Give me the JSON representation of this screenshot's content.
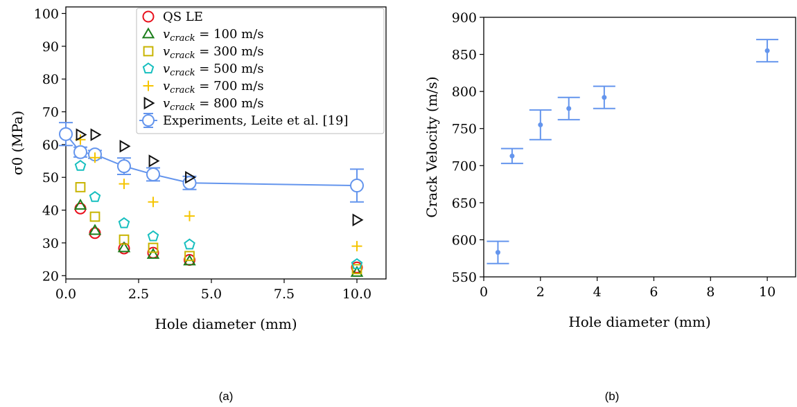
{
  "chart_data": [
    {
      "type": "scatter",
      "panel_label": "(a)",
      "xlabel": "Hole diameter (mm)",
      "ylabel": "σ0 (MPa)",
      "xlim": [
        0,
        11
      ],
      "ylim": [
        19,
        102
      ],
      "xticks": [
        "0.0",
        "2.5",
        "5.0",
        "7.5",
        "10.0"
      ],
      "xtick_values": [
        0,
        2.5,
        5,
        7.5,
        10
      ],
      "yticks": [
        "20",
        "30",
        "40",
        "50",
        "60",
        "70",
        "80",
        "90",
        "100"
      ],
      "ytick_values": [
        20,
        30,
        40,
        50,
        60,
        70,
        80,
        90,
        100
      ],
      "grid": false,
      "legend_position": "top-right",
      "x": [
        0.5,
        1,
        2,
        3,
        4.25,
        10
      ],
      "series": [
        {
          "legend_prefix": "QS LE",
          "legend_suffix": "",
          "marker": "circle",
          "color": "#e8101c",
          "values": [
            40.5,
            33,
            28.3,
            27,
            24.8,
            22.5
          ]
        },
        {
          "legend_prefix": "v",
          "legend_sub": "crack",
          "legend_suffix": " = 100 m/s",
          "marker": "triangle",
          "color": "#1a7d1a",
          "values": [
            41.5,
            33.8,
            28.5,
            26.5,
            24.5,
            21
          ]
        },
        {
          "legend_prefix": "v",
          "legend_sub": "crack",
          "legend_suffix": " = 300 m/s",
          "marker": "square",
          "color": "#c8b400",
          "values": [
            47,
            38,
            31,
            28.5,
            26,
            22
          ]
        },
        {
          "legend_prefix": "v",
          "legend_sub": "crack",
          "legend_suffix": " = 500 m/s",
          "marker": "pentagon",
          "color": "#17bfbf",
          "values": [
            53.5,
            44,
            36,
            32,
            29.5,
            23.5
          ]
        },
        {
          "legend_prefix": "v",
          "legend_sub": "crack",
          "legend_suffix": " = 700 m/s",
          "marker": "plus",
          "color": "#f5c400",
          "values": [
            61.5,
            56,
            48,
            42.5,
            38.2,
            29
          ]
        },
        {
          "legend_prefix": "v",
          "legend_sub": "crack",
          "legend_suffix": " = 800 m/s",
          "marker": "triangle-right",
          "color": "#111111",
          "values": [
            63,
            63,
            59.5,
            55,
            50,
            37
          ]
        },
        {
          "legend_prefix": "Experiments, Leite et al. [19]",
          "legend_suffix": "",
          "marker": "circle-line-errorbar",
          "color": "#6495ed",
          "x": [
            0,
            0.5,
            1,
            2,
            3,
            4.25,
            10
          ],
          "values": [
            63.2,
            57.7,
            57,
            53.4,
            50.9,
            48.3,
            47.5
          ],
          "errors": [
            3.5,
            1.5,
            1.2,
            2.5,
            2,
            2,
            5
          ]
        }
      ]
    },
    {
      "type": "errorbar",
      "panel_label": "(b)",
      "xlabel": "Hole diameter (mm)",
      "ylabel": "Crack Velocity (m/s)",
      "xlim": [
        0,
        11
      ],
      "ylim": [
        550,
        900
      ],
      "xticks": [
        "0",
        "2",
        "4",
        "6",
        "8",
        "10"
      ],
      "xtick_values": [
        0,
        2,
        4,
        6,
        8,
        10
      ],
      "yticks": [
        "550",
        "600",
        "650",
        "700",
        "750",
        "800",
        "850",
        "900"
      ],
      "ytick_values": [
        550,
        600,
        650,
        700,
        750,
        800,
        850,
        900
      ],
      "grid": false,
      "color": "#6495ed",
      "x": [
        0.5,
        1,
        2,
        3,
        4.25,
        10
      ],
      "values": [
        583,
        713,
        755,
        777,
        792,
        855
      ],
      "errors": [
        15,
        10,
        20,
        15,
        15,
        15
      ]
    }
  ]
}
